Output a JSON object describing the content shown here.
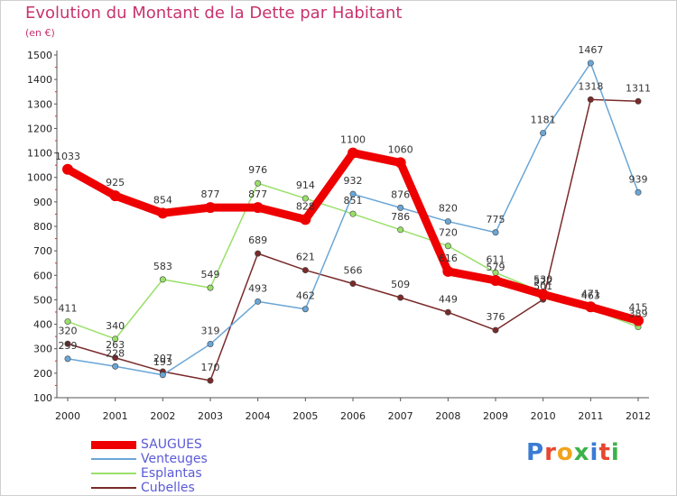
{
  "title": "Evolution du Montant de la Dette par Habitant",
  "subtitle": "(en €)",
  "brand": {
    "text": "Proxiti",
    "letter_colors": [
      "#3b7bd4",
      "#e8462e",
      "#f2a31b",
      "#3cb34a",
      "#3b7bd4",
      "#e8462e",
      "#3cb34a"
    ]
  },
  "chart_data": {
    "type": "line",
    "title": "Evolution du Montant de la Dette par Habitant",
    "subtitle": "(en €)",
    "xlabel": "",
    "ylabel": "",
    "x": [
      "2000",
      "2001",
      "2002",
      "2003",
      "2004",
      "2005",
      "2006",
      "2007",
      "2008",
      "2009",
      "2010",
      "2011",
      "2012"
    ],
    "ylim": [
      100,
      1500
    ],
    "yticks": [
      100,
      200,
      300,
      400,
      500,
      600,
      700,
      800,
      900,
      1000,
      1100,
      1200,
      1300,
      1400,
      1500
    ],
    "grid": false,
    "legend_position": "bottom-left",
    "series": [
      {
        "name": "SAUGUES",
        "color": "#ee0000",
        "values": [
          1033,
          925,
          854,
          877,
          877,
          828,
          1100,
          1060,
          616,
          579,
          522,
          471,
          415
        ]
      },
      {
        "name": "Venteuges",
        "color": "#6aa6d6",
        "values": [
          259,
          228,
          193,
          319,
          493,
          462,
          932,
          876,
          820,
          775,
          1181,
          1467,
          939
        ]
      },
      {
        "name": "Esplantas",
        "color": "#99e06a",
        "values": [
          411,
          340,
          583,
          549,
          976,
          914,
          851,
          786,
          720,
          611,
          530,
          463,
          389
        ]
      },
      {
        "name": "Cubelles",
        "color": "#7a2a2a",
        "values": [
          320,
          263,
          207,
          170,
          689,
          621,
          566,
          509,
          449,
          376,
          501,
          1318,
          1311
        ]
      }
    ]
  }
}
